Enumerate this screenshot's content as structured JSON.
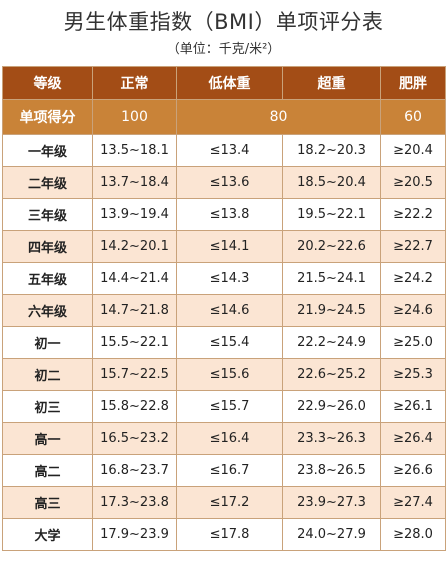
{
  "title": "男生体重指数（BMI）单项评分表",
  "subtitle": "（单位：千克/米²）",
  "header": [
    "等级",
    "正常",
    "低体重",
    "超重",
    "肥胖"
  ],
  "score_row": {
    "label": "单项得分",
    "normal": "100",
    "under_over": "80",
    "obese": "60"
  },
  "rows": [
    {
      "grade": "一年级",
      "normal": "13.5~18.1",
      "low": "≤13.4",
      "over": "18.2~20.3",
      "obese": "≥20.4"
    },
    {
      "grade": "二年级",
      "normal": "13.7~18.4",
      "low": "≤13.6",
      "over": "18.5~20.4",
      "obese": "≥20.5"
    },
    {
      "grade": "三年级",
      "normal": "13.9~19.4",
      "low": "≤13.8",
      "over": "19.5~22.1",
      "obese": "≥22.2"
    },
    {
      "grade": "四年级",
      "normal": "14.2~20.1",
      "low": "≤14.1",
      "over": "20.2~22.6",
      "obese": "≥22.7"
    },
    {
      "grade": "五年级",
      "normal": "14.4~21.4",
      "low": "≤14.3",
      "over": "21.5~24.1",
      "obese": "≥24.2"
    },
    {
      "grade": "六年级",
      "normal": "14.7~21.8",
      "low": "≤14.6",
      "over": "21.9~24.5",
      "obese": "≥24.6"
    },
    {
      "grade": "初一",
      "normal": "15.5~22.1",
      "low": "≤15.4",
      "over": "22.2~24.9",
      "obese": "≥25.0"
    },
    {
      "grade": "初二",
      "normal": "15.7~22.5",
      "low": "≤15.6",
      "over": "22.6~25.2",
      "obese": "≥25.3"
    },
    {
      "grade": "初三",
      "normal": "15.8~22.8",
      "low": "≤15.7",
      "over": "22.9~26.0",
      "obese": "≥26.1"
    },
    {
      "grade": "高一",
      "normal": "16.5~23.2",
      "low": "≤16.4",
      "over": "23.3~26.3",
      "obese": "≥26.4"
    },
    {
      "grade": "高二",
      "normal": "16.8~23.7",
      "low": "≤16.7",
      "over": "23.8~26.5",
      "obese": "≥26.6"
    },
    {
      "grade": "高三",
      "normal": "17.3~23.8",
      "low": "≤17.2",
      "over": "23.9~27.3",
      "obese": "≥27.4"
    },
    {
      "grade": "大学",
      "normal": "17.9~23.9",
      "low": "≤17.8",
      "over": "24.0~27.9",
      "obese": "≥28.0"
    }
  ],
  "colors": {
    "header_bg": "#a34d16",
    "score_bg": "#c98338",
    "even_row_bg": "#fbe5d3",
    "border": "#c9a27a"
  }
}
